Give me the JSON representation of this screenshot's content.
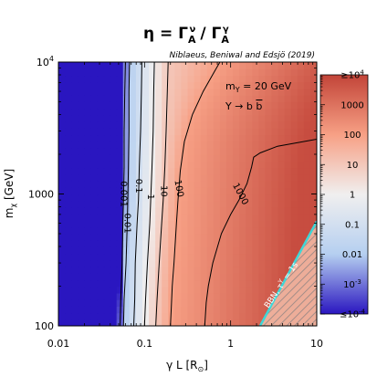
{
  "chart_data": {
    "type": "heatmap",
    "title": "η = Γ",
    "title_parts": {
      "gamma_num_sup": "ν",
      "gamma_num_sub": "A",
      "sep": "/ Γ",
      "gamma_den_sup": "γ",
      "gamma_den_sub": "A"
    },
    "credit": "Niblaeus, Beniwal and Edsjö (2019)",
    "xlabel": "γ L [R",
    "xlabel_sub": "⊙",
    "xlabel_end": "]",
    "ylabel": "m",
    "ylabel_sub": "χ",
    "ylabel_end": " [GeV]",
    "x_scale": "log",
    "y_scale": "log",
    "xlim": [
      0.01,
      10
    ],
    "ylim": [
      100,
      10000
    ],
    "x_ticks": [
      {
        "value": 0.01,
        "label": "0.01"
      },
      {
        "value": 0.1,
        "label": "0.1"
      },
      {
        "value": 1,
        "label": "1"
      },
      {
        "value": 10,
        "label": "10"
      }
    ],
    "y_ticks": [
      {
        "value": 100,
        "label": "100"
      },
      {
        "value": 1000,
        "label": "1000"
      }
    ],
    "y_top_tick": {
      "value": 10000,
      "base": "10",
      "exp": "4"
    },
    "annotation_mass": {
      "text": "m",
      "sub": "Y",
      "rest": " = 20 GeV"
    },
    "annotation_channel": {
      "text": "Y → b ",
      "bbar": "b"
    },
    "bbn_label": {
      "text": "BBN, τ",
      "sup": "Y",
      "rest": " = 1s"
    },
    "colorbar": {
      "scale": "log",
      "range": [
        0.0001,
        10000
      ],
      "ticks": [
        {
          "value": 10000,
          "label": "≥10",
          "sup": "4"
        },
        {
          "value": 1000,
          "label": "1000"
        },
        {
          "value": 100,
          "label": "100"
        },
        {
          "value": 10,
          "label": "10"
        },
        {
          "value": 1,
          "label": "1"
        },
        {
          "value": 0.1,
          "label": "0.1"
        },
        {
          "value": 0.01,
          "label": "0.01"
        },
        {
          "value": 0.001,
          "label": "10",
          "sup": "-3"
        },
        {
          "value": 0.0001,
          "label": "≤10",
          "sup": "-4"
        }
      ],
      "colors": [
        "#2a16c0",
        "#b5cff0",
        "#f0efef",
        "#f7a085",
        "#c24438"
      ]
    },
    "contours": [
      {
        "level": 0.001,
        "label": "0.001",
        "points": [
          [
            0.052,
            100
          ],
          [
            0.053,
            160
          ],
          [
            0.055,
            300
          ],
          [
            0.056,
            600
          ],
          [
            0.057,
            900
          ],
          [
            0.058,
            1600
          ],
          [
            0.058,
            3000
          ],
          [
            0.059,
            6000
          ],
          [
            0.06,
            10000
          ]
        ]
      },
      {
        "level": 0.01,
        "label": "0.01",
        "points": [
          [
            0.057,
            100
          ],
          [
            0.058,
            160
          ],
          [
            0.061,
            300
          ],
          [
            0.063,
            600
          ],
          [
            0.064,
            900
          ],
          [
            0.065,
            1600
          ],
          [
            0.066,
            3000
          ],
          [
            0.066,
            6000
          ],
          [
            0.067,
            10000
          ]
        ]
      },
      {
        "level": 0.1,
        "label": "0.1",
        "points": [
          [
            0.075,
            100
          ],
          [
            0.077,
            160
          ],
          [
            0.078,
            300
          ],
          [
            0.082,
            600
          ],
          [
            0.085,
            900
          ],
          [
            0.087,
            1600
          ],
          [
            0.09,
            3000
          ],
          [
            0.092,
            6000
          ],
          [
            0.093,
            10000
          ]
        ]
      },
      {
        "level": 1,
        "label": "1",
        "points": [
          [
            0.1,
            100
          ],
          [
            0.103,
            160
          ],
          [
            0.108,
            300
          ],
          [
            0.115,
            600
          ],
          [
            0.118,
            900
          ],
          [
            0.122,
            1600
          ],
          [
            0.126,
            3000
          ],
          [
            0.128,
            6000
          ],
          [
            0.13,
            10000
          ]
        ]
      },
      {
        "level": 10,
        "label": "10",
        "points": [
          [
            0.135,
            100
          ],
          [
            0.14,
            160
          ],
          [
            0.148,
            300
          ],
          [
            0.158,
            600
          ],
          [
            0.165,
            900
          ],
          [
            0.172,
            1600
          ],
          [
            0.178,
            3000
          ],
          [
            0.184,
            6000
          ],
          [
            0.188,
            10000
          ]
        ]
      },
      {
        "level": 100,
        "label": "100",
        "points": [
          [
            0.2,
            100
          ],
          [
            0.205,
            140
          ],
          [
            0.21,
            200
          ],
          [
            0.22,
            300
          ],
          [
            0.235,
            600
          ],
          [
            0.245,
            900
          ],
          [
            0.26,
            1500
          ],
          [
            0.29,
            2500
          ],
          [
            0.36,
            4000
          ],
          [
            0.48,
            6000
          ],
          [
            0.65,
            8500
          ],
          [
            0.75,
            10000
          ]
        ]
      },
      {
        "level": 1000,
        "label": "1000",
        "points": [
          [
            0.5,
            100
          ],
          [
            0.52,
            150
          ],
          [
            0.55,
            200
          ],
          [
            0.62,
            300
          ],
          [
            0.78,
            500
          ],
          [
            1.0,
            700
          ],
          [
            1.25,
            900
          ],
          [
            1.55,
            1200
          ],
          [
            1.75,
            1600
          ],
          [
            1.85,
            1900
          ],
          [
            2.2,
            2050
          ],
          [
            3.5,
            2300
          ],
          [
            10,
            2600
          ]
        ]
      }
    ],
    "bbn_boundary": [
      [
        2.2,
        100
      ],
      [
        10,
        620
      ]
    ]
  }
}
